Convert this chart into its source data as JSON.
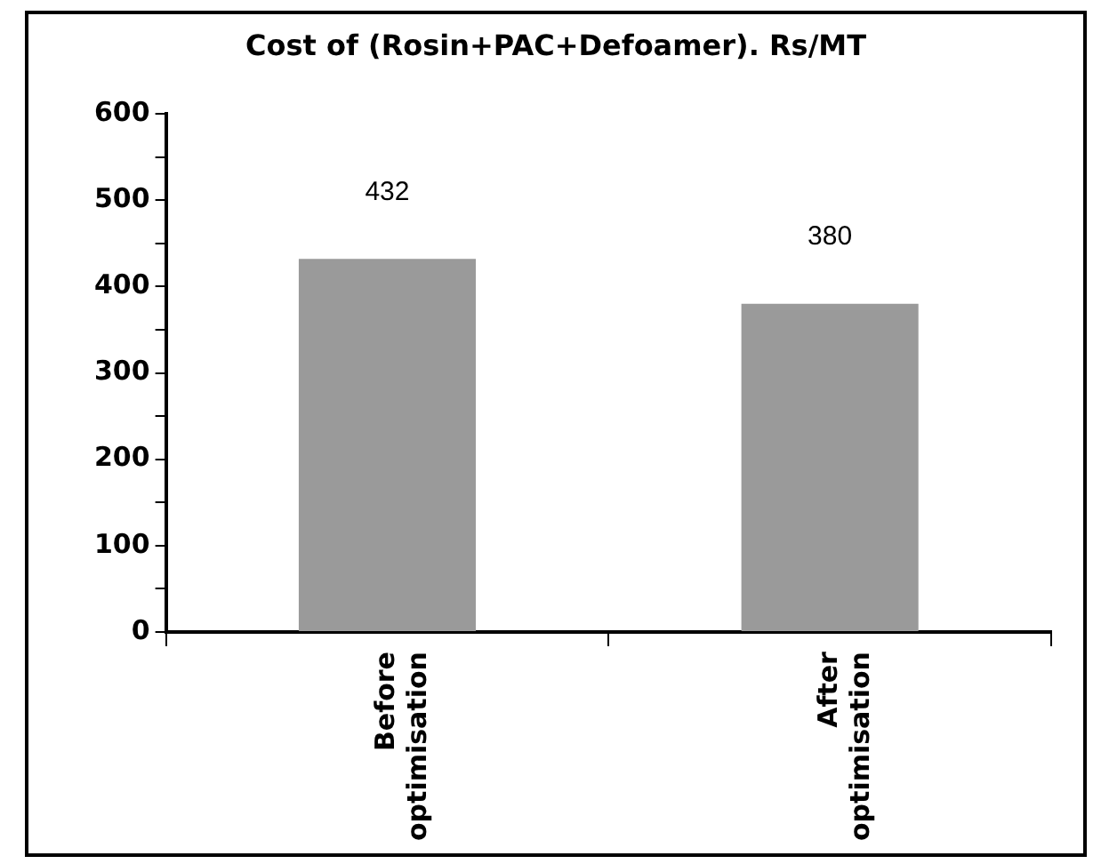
{
  "chart_data": {
    "type": "bar",
    "title": "Cost of (Rosin+PAC+Defoamer). Rs/MT",
    "categories": [
      "Before optimisation",
      "After optimisation"
    ],
    "values": [
      432,
      380
    ],
    "color": "#9a9a9a",
    "ylim": [
      0,
      600
    ],
    "yticks": [
      0,
      {
        "value": 50,
        "label": null
      },
      100,
      {
        "value": 150,
        "label": null
      },
      200,
      {
        "value": 250,
        "label": null
      },
      300,
      {
        "value": 350,
        "label": null
      },
      400,
      {
        "value": 450,
        "label": null
      },
      500,
      {
        "value": 550,
        "label": null
      },
      600
    ],
    "grid": false,
    "legend": false,
    "data_labels": true
  }
}
